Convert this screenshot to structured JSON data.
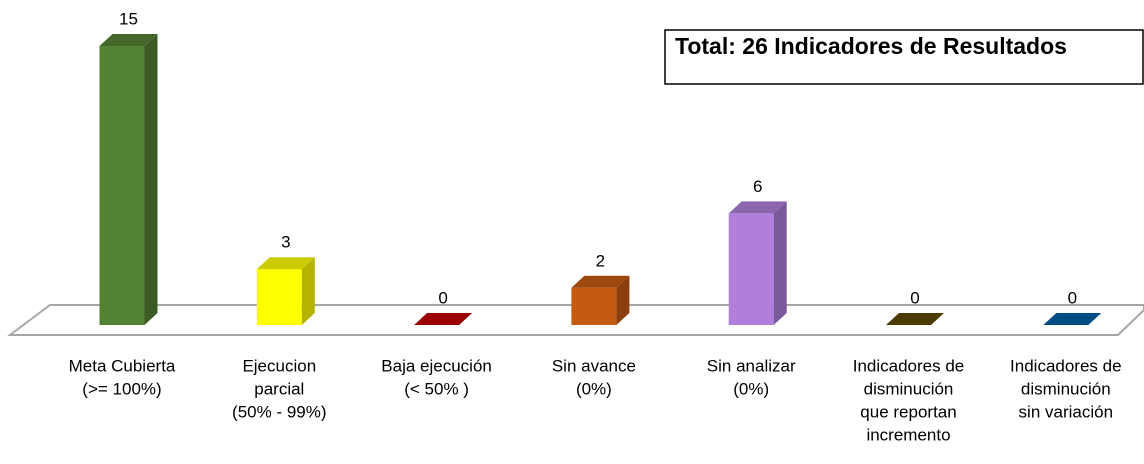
{
  "chart_data": {
    "type": "bar3d",
    "title": "Total: 26 Indicadores de Resultados",
    "categories": [
      [
        "Meta Cubierta",
        "(>= 100%)"
      ],
      [
        "Ejecucion",
        "parcial",
        "(50% - 99%)"
      ],
      [
        "Baja ejecución",
        "(< 50% )"
      ],
      [
        "Sin avance",
        "(0%)"
      ],
      [
        "Sin analizar",
        "(0%)"
      ],
      [
        "Indicadores de",
        "disminución",
        "que reportan",
        "incremento"
      ],
      [
        "Indicadores de",
        "disminución",
        "sin variación"
      ]
    ],
    "values": [
      15,
      3,
      0,
      2,
      6,
      0,
      0
    ],
    "colors": [
      "#548235",
      "#ffff00",
      "#c00000",
      "#c55a11",
      "#b07fdc",
      "#5e4a00",
      "#0060a8"
    ]
  }
}
